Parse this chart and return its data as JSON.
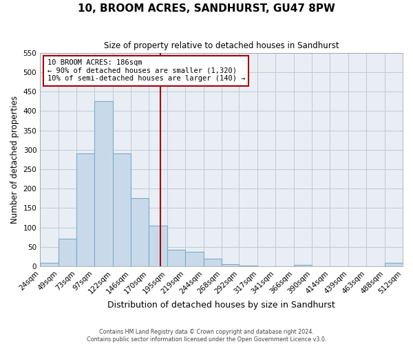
{
  "title": "10, BROOM ACRES, SANDHURST, GU47 8PW",
  "subtitle": "Size of property relative to detached houses in Sandhurst",
  "xlabel": "Distribution of detached houses by size in Sandhurst",
  "ylabel": "Number of detached properties",
  "bar_color": "#c8daea",
  "bar_edge_color": "#7aaac8",
  "grid_color": "#c0c8d8",
  "plot_bg_color": "#e8eef4",
  "bin_edges": [
    24,
    49,
    73,
    97,
    122,
    146,
    170,
    195,
    219,
    244,
    268,
    292,
    317,
    341,
    366,
    390,
    414,
    439,
    463,
    488,
    512
  ],
  "bin_labels": [
    "24sqm",
    "49sqm",
    "73sqm",
    "97sqm",
    "122sqm",
    "146sqm",
    "170sqm",
    "195sqm",
    "219sqm",
    "244sqm",
    "268sqm",
    "292sqm",
    "317sqm",
    "341sqm",
    "366sqm",
    "390sqm",
    "414sqm",
    "439sqm",
    "463sqm",
    "488sqm",
    "512sqm"
  ],
  "counts": [
    8,
    70,
    290,
    425,
    290,
    175,
    105,
    43,
    37,
    20,
    5,
    2,
    0,
    0,
    3,
    0,
    0,
    0,
    0,
    8
  ],
  "property_value": 186,
  "vline_color": "#aa0000",
  "annotation_line1": "10 BROOM ACRES: 186sqm",
  "annotation_line2": "← 90% of detached houses are smaller (1,320)",
  "annotation_line3": "10% of semi-detached houses are larger (140) →",
  "annotation_box_color": "#ffffff",
  "annotation_box_edge": "#aa0000",
  "ylim": [
    0,
    550
  ],
  "yticks": [
    0,
    50,
    100,
    150,
    200,
    250,
    300,
    350,
    400,
    450,
    500,
    550
  ],
  "footer_line1": "Contains HM Land Registry data © Crown copyright and database right 2024.",
  "footer_line2": "Contains public sector information licensed under the Open Government Licence v3.0.",
  "background_color": "#ffffff"
}
